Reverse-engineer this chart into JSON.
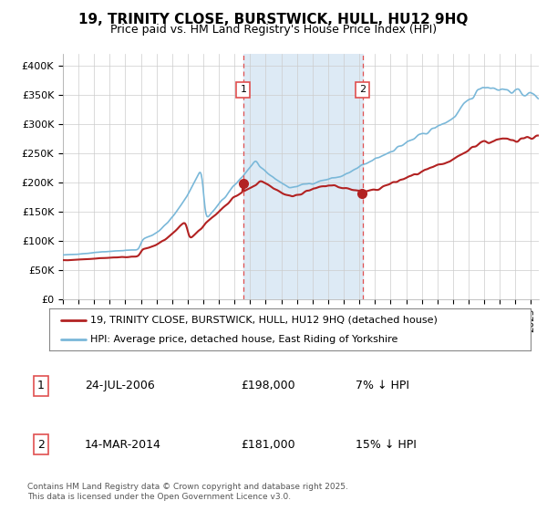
{
  "title": "19, TRINITY CLOSE, BURSTWICK, HULL, HU12 9HQ",
  "subtitle": "Price paid vs. HM Land Registry's House Price Index (HPI)",
  "title_fontsize": 11,
  "subtitle_fontsize": 9,
  "hpi_color": "#7ab8d9",
  "price_color": "#b22222",
  "background_color": "#ffffff",
  "plot_bg_color": "#ffffff",
  "highlight_bg_color": "#ddeaf5",
  "ylim": [
    0,
    420000
  ],
  "yticks": [
    0,
    50000,
    100000,
    150000,
    200000,
    250000,
    300000,
    350000,
    400000
  ],
  "ytick_labels": [
    "£0",
    "£50K",
    "£100K",
    "£150K",
    "£200K",
    "£250K",
    "£300K",
    "£350K",
    "£400K"
  ],
  "xstart_year": 1995,
  "xend_year": 2025,
  "sale1_date": 2006.56,
  "sale1_price": 198000,
  "sale1_label": "1",
  "sale1_text": "24-JUL-2006",
  "sale1_pct": "7% ↓ HPI",
  "sale2_date": 2014.21,
  "sale2_price": 181000,
  "sale2_label": "2",
  "sale2_text": "14-MAR-2014",
  "sale2_pct": "15% ↓ HPI",
  "legend_line1": "19, TRINITY CLOSE, BURSTWICK, HULL, HU12 9HQ (detached house)",
  "legend_line2": "HPI: Average price, detached house, East Riding of Yorkshire",
  "footer": "Contains HM Land Registry data © Crown copyright and database right 2025.\nThis data is licensed under the Open Government Licence v3.0.",
  "grid_color": "#cccccc",
  "dashed_color": "#e05050"
}
